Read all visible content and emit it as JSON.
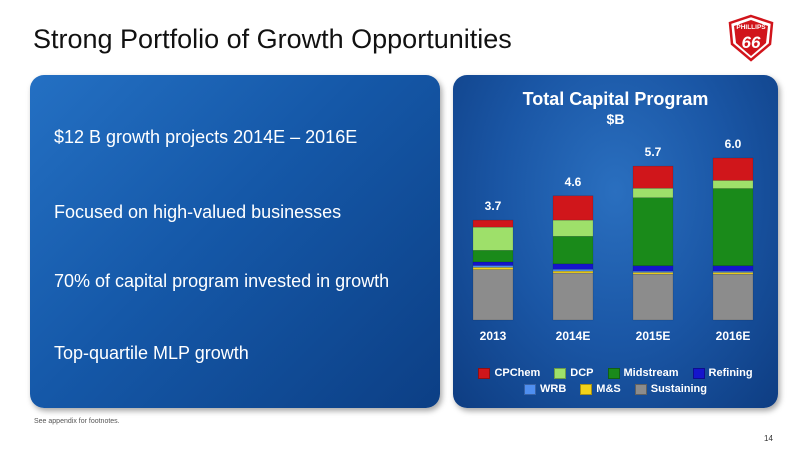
{
  "slide": {
    "title": "Strong Portfolio of Growth Opportunities",
    "bullets": [
      "$12 B growth projects 2014E – 2016E",
      "Focused on high-valued businesses",
      "70% of capital program invested in growth",
      "Top-quartile MLP growth"
    ],
    "footnote": "See appendix for footnotes.",
    "page_number": "14",
    "logo_text": {
      "top": "PHILLIPS",
      "main": "66"
    }
  },
  "colors": {
    "panel": "#1558a8",
    "logo_red": "#d1141b",
    "CPChem": "#d0161b",
    "DCP": "#9ee06a",
    "Midstream": "#1a8a1a",
    "Refining": "#1515cc",
    "WRB": "#4f8ff0",
    "M&S": "#f2d21a",
    "Sustaining": "#8c8c8c"
  },
  "chart_data": {
    "type": "bar",
    "stacked": true,
    "title": "Total Capital Program",
    "subtitle": "$B",
    "categories": [
      "2013",
      "2014E",
      "2015E",
      "2016E"
    ],
    "totals": [
      "3.7",
      "4.6",
      "5.7",
      "6.0"
    ],
    "series": [
      {
        "name": "Sustaining",
        "values": [
          1.87,
          1.74,
          1.7,
          1.7
        ]
      },
      {
        "name": "M&S",
        "values": [
          0.08,
          0.07,
          0.06,
          0.06
        ]
      },
      {
        "name": "WRB",
        "values": [
          0.07,
          0.07,
          0.05,
          0.05
        ]
      },
      {
        "name": "Refining",
        "values": [
          0.13,
          0.2,
          0.2,
          0.2
        ]
      },
      {
        "name": "Midstream",
        "values": [
          0.43,
          1.02,
          2.52,
          2.86
        ]
      },
      {
        "name": "DCP",
        "values": [
          0.86,
          0.6,
          0.35,
          0.3
        ]
      },
      {
        "name": "CPChem",
        "values": [
          0.26,
          0.9,
          0.82,
          0.83
        ]
      }
    ],
    "ylim": [
      0,
      6.0
    ],
    "legend_rows": [
      [
        "CPChem",
        "DCP",
        "Midstream",
        "Refining"
      ],
      [
        "WRB",
        "M&S",
        "Sustaining"
      ]
    ],
    "legend_position": "bottom",
    "grid": false
  }
}
